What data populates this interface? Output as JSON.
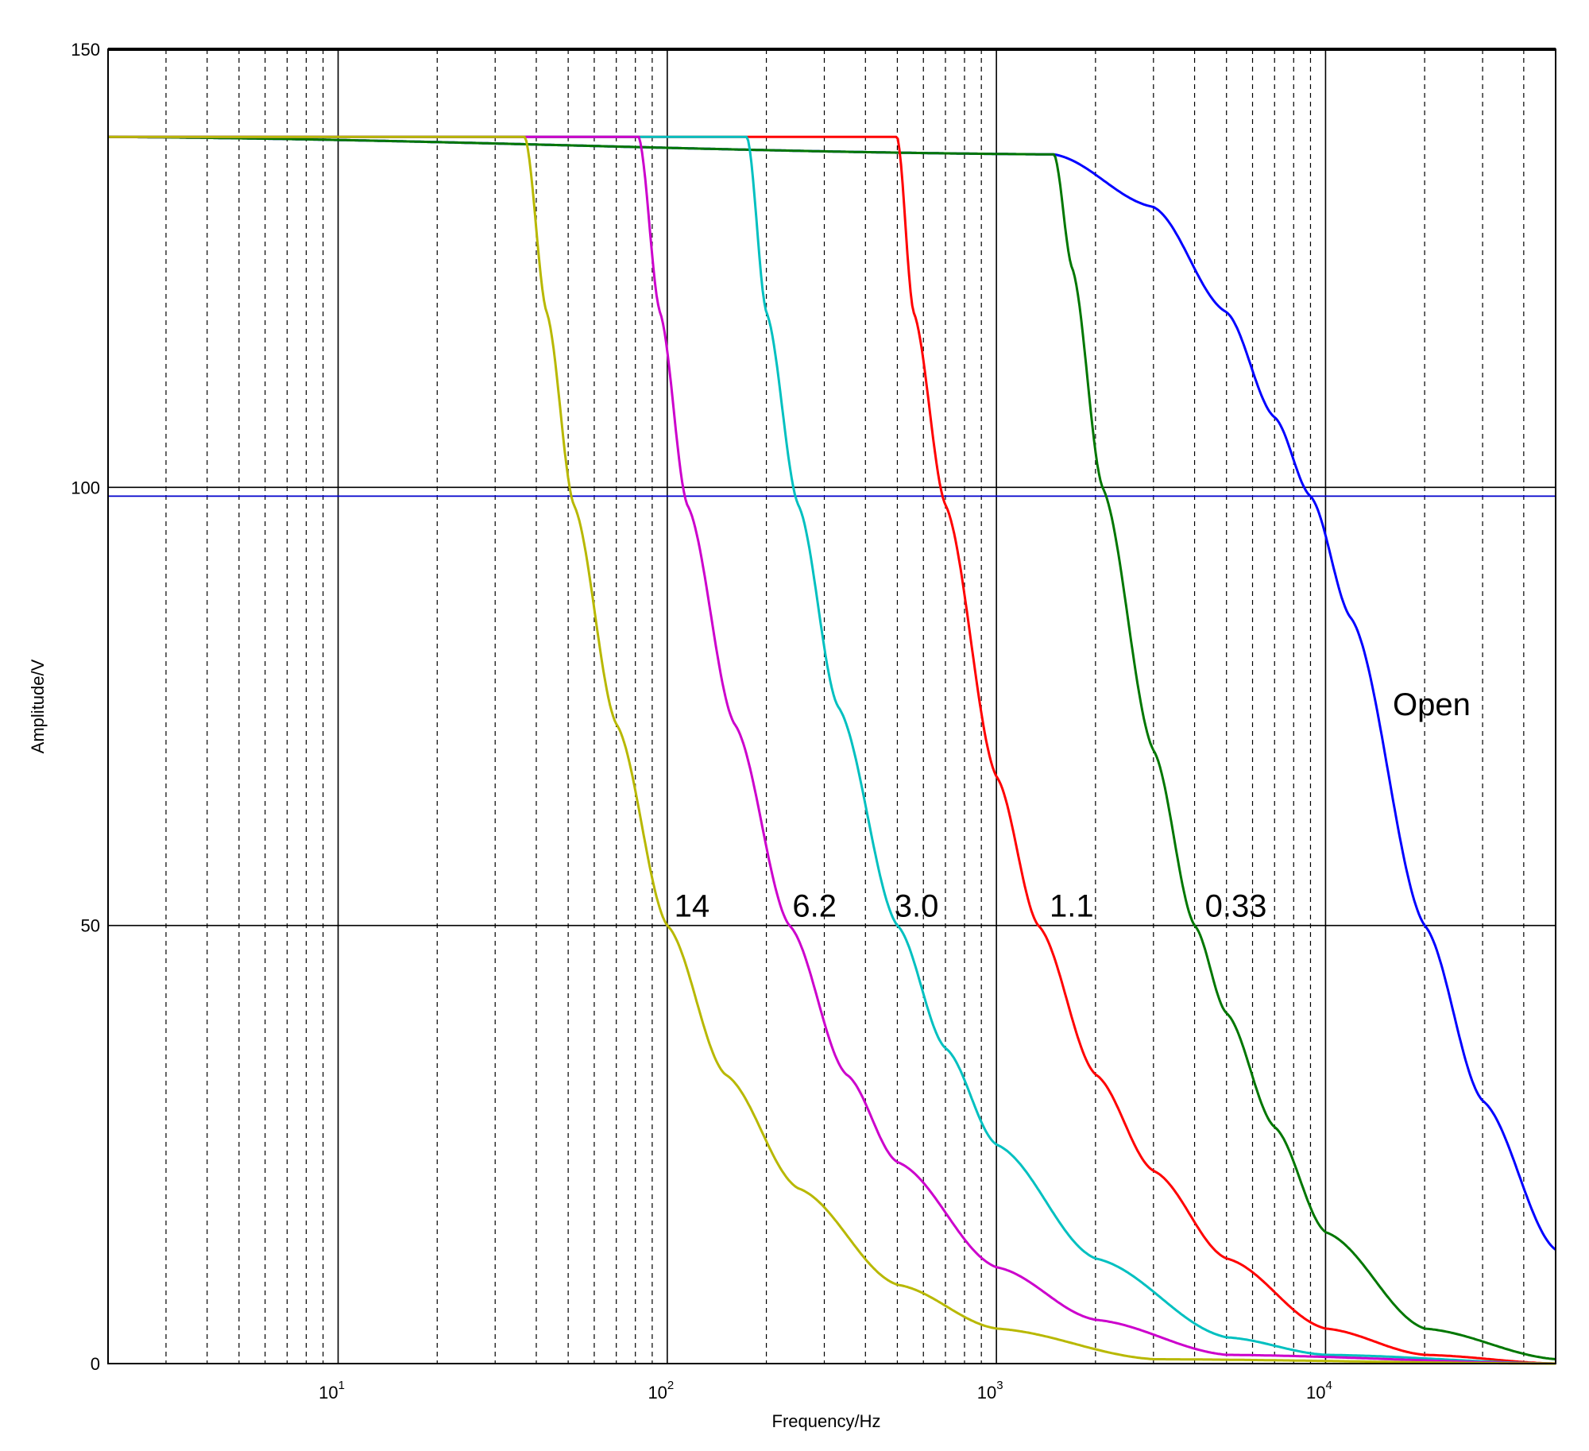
{
  "chart_data": {
    "type": "line",
    "title": "",
    "xlabel": "Frequency/Hz",
    "ylabel": "Amplitude/V",
    "x_scale": "log",
    "xlim": [
      2,
      50000
    ],
    "ylim": [
      0,
      150
    ],
    "x_ticks": [
      {
        "value": 10,
        "base": "10",
        "exponent": "1"
      },
      {
        "value": 100,
        "base": "10",
        "exponent": "2"
      },
      {
        "value": 1000,
        "base": "10",
        "exponent": "3"
      },
      {
        "value": 10000,
        "base": "10",
        "exponent": "4"
      }
    ],
    "y_ticks": [
      {
        "value": 0,
        "label": "0"
      },
      {
        "value": 50,
        "label": "50"
      },
      {
        "value": 100,
        "label": "100"
      },
      {
        "value": 150,
        "label": "150"
      }
    ],
    "grid": {
      "x_major": true,
      "x_minor_dashed": true,
      "y_major": true
    },
    "reference_line": {
      "y": 99,
      "color": "#0000cc"
    },
    "series": [
      {
        "label": "Open",
        "color": "#0000ff",
        "saturation": 140,
        "points": [
          [
            2,
            140
          ],
          [
            1500,
            138
          ],
          [
            3000,
            132
          ],
          [
            5000,
            120
          ],
          [
            7000,
            108
          ],
          [
            9000,
            99
          ],
          [
            12000,
            85
          ],
          [
            20000,
            50
          ],
          [
            30000,
            30
          ],
          [
            50000,
            13
          ]
        ]
      },
      {
        "label": "0.33",
        "color": "#007700",
        "saturation": 140,
        "points": [
          [
            2,
            140
          ],
          [
            1500,
            138
          ],
          [
            1700,
            125
          ],
          [
            2100,
            100
          ],
          [
            3000,
            70
          ],
          [
            4000,
            50
          ],
          [
            5000,
            40
          ],
          [
            7000,
            27
          ],
          [
            10000,
            15
          ],
          [
            20000,
            4
          ],
          [
            50000,
            0.5
          ]
        ]
      },
      {
        "label": "1.1",
        "color": "#ff0000",
        "saturation": 140,
        "points": [
          [
            2,
            140
          ],
          [
            500,
            140
          ],
          [
            560,
            120
          ],
          [
            700,
            98
          ],
          [
            1000,
            67
          ],
          [
            1340,
            50
          ],
          [
            2000,
            33
          ],
          [
            3000,
            22
          ],
          [
            5000,
            12
          ],
          [
            10000,
            4
          ],
          [
            20000,
            1
          ],
          [
            50000,
            0
          ]
        ]
      },
      {
        "label": "3.0",
        "color": "#00c0c0",
        "saturation": 140,
        "points": [
          [
            2,
            140
          ],
          [
            175,
            140
          ],
          [
            200,
            120
          ],
          [
            250,
            98
          ],
          [
            330,
            75
          ],
          [
            500,
            50
          ],
          [
            700,
            36
          ],
          [
            1000,
            25
          ],
          [
            2000,
            12
          ],
          [
            5000,
            3
          ],
          [
            10000,
            1
          ],
          [
            50000,
            0
          ]
        ]
      },
      {
        "label": "6.2",
        "color": "#cc00cc",
        "saturation": 140,
        "points": [
          [
            2,
            140
          ],
          [
            82,
            140
          ],
          [
            95,
            120
          ],
          [
            115,
            98
          ],
          [
            160,
            73
          ],
          [
            235,
            50
          ],
          [
            350,
            33
          ],
          [
            500,
            23
          ],
          [
            1000,
            11
          ],
          [
            2000,
            5
          ],
          [
            5000,
            1
          ],
          [
            50000,
            0
          ]
        ]
      },
      {
        "label": "14",
        "color": "#b8b800",
        "saturation": 140,
        "points": [
          [
            2,
            140
          ],
          [
            37,
            140
          ],
          [
            43,
            120
          ],
          [
            52,
            98
          ],
          [
            70,
            73
          ],
          [
            100,
            50
          ],
          [
            150,
            33
          ],
          [
            250,
            20
          ],
          [
            500,
            9
          ],
          [
            1000,
            4
          ],
          [
            3000,
            0.5
          ],
          [
            50000,
            0
          ]
        ]
      }
    ],
    "annotations": [
      {
        "text": "14",
        "x": 105,
        "y": 51
      },
      {
        "text": "6.2",
        "x": 240,
        "y": 51
      },
      {
        "text": "3.0",
        "x": 490,
        "y": 51
      },
      {
        "text": "1.1",
        "x": 1450,
        "y": 51
      },
      {
        "text": "0.33",
        "x": 4300,
        "y": 51
      },
      {
        "text": "Open",
        "x": 16000,
        "y": 74
      }
    ]
  }
}
